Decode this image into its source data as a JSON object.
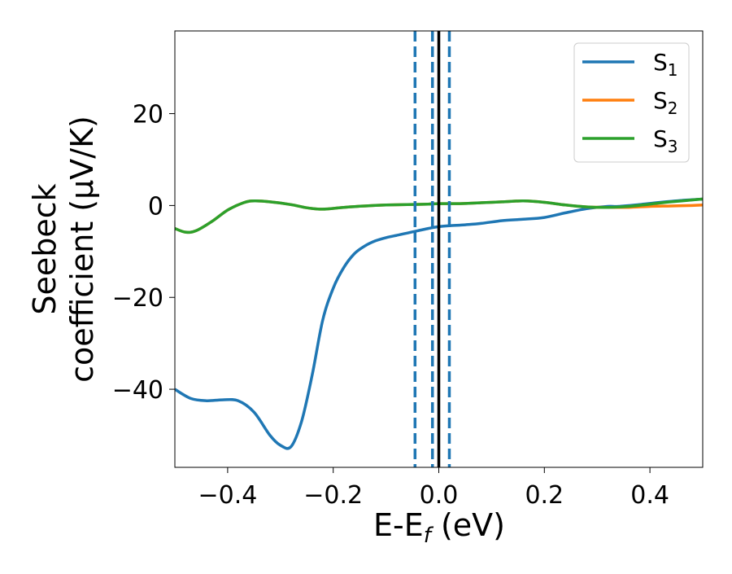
{
  "chart_data": {
    "type": "line",
    "xlabel": "E-E",
    "xlabel_sub": "f",
    "xlabel_unit": " (eV)",
    "ylabel_line1": "Seebeck",
    "ylabel_line2": "coefficient  (μV/K)",
    "xlim": [
      -0.5,
      0.5
    ],
    "ylim": [
      -57,
      38
    ],
    "x_ticks": [
      -0.4,
      -0.2,
      0.0,
      0.2,
      0.4
    ],
    "x_tick_labels": [
      "−0.4",
      "−0.2",
      "0.0",
      "0.2",
      "0.4"
    ],
    "y_ticks": [
      -40,
      -20,
      0,
      20
    ],
    "y_tick_labels": [
      "−40",
      "−20",
      "0",
      "20"
    ],
    "grid": false,
    "legend_position": "top-right",
    "series": [
      {
        "name": "S",
        "subscript": "1",
        "color": "#1f77b4",
        "points": [
          [
            -0.5,
            -40
          ],
          [
            -0.47,
            -42
          ],
          [
            -0.44,
            -42.5
          ],
          [
            -0.41,
            -42.3
          ],
          [
            -0.38,
            -42.5
          ],
          [
            -0.35,
            -45
          ],
          [
            -0.32,
            -50
          ],
          [
            -0.3,
            -52.2
          ],
          [
            -0.28,
            -52.5
          ],
          [
            -0.26,
            -47
          ],
          [
            -0.24,
            -37
          ],
          [
            -0.22,
            -25
          ],
          [
            -0.2,
            -18
          ],
          [
            -0.18,
            -13.5
          ],
          [
            -0.16,
            -10.5
          ],
          [
            -0.14,
            -8.8
          ],
          [
            -0.12,
            -7.7
          ],
          [
            -0.1,
            -7
          ],
          [
            -0.08,
            -6.5
          ],
          [
            -0.06,
            -6
          ],
          [
            -0.04,
            -5.5
          ],
          [
            -0.02,
            -5
          ],
          [
            0.0,
            -4.6
          ],
          [
            0.02,
            -4.4
          ],
          [
            0.05,
            -4.2
          ],
          [
            0.08,
            -3.9
          ],
          [
            0.12,
            -3.3
          ],
          [
            0.16,
            -3
          ],
          [
            0.2,
            -2.6
          ],
          [
            0.24,
            -1.6
          ],
          [
            0.28,
            -0.7
          ],
          [
            0.32,
            -0.2
          ],
          [
            0.34,
            -0.2
          ],
          [
            0.38,
            0.2
          ],
          [
            0.42,
            0.7
          ],
          [
            0.46,
            1.1
          ],
          [
            0.5,
            1.4
          ]
        ]
      },
      {
        "name": "S",
        "subscript": "2",
        "color": "#ff7f0e",
        "points": [
          [
            -0.5,
            -5
          ],
          [
            -0.48,
            -5.8
          ],
          [
            -0.46,
            -5.5
          ],
          [
            -0.43,
            -3.5
          ],
          [
            -0.4,
            -1
          ],
          [
            -0.37,
            0.6
          ],
          [
            -0.35,
            1
          ],
          [
            -0.32,
            0.8
          ],
          [
            -0.28,
            0.2
          ],
          [
            -0.25,
            -0.5
          ],
          [
            -0.22,
            -0.8
          ],
          [
            -0.18,
            -0.4
          ],
          [
            -0.14,
            -0.1
          ],
          [
            -0.1,
            0.1
          ],
          [
            -0.06,
            0.2
          ],
          [
            -0.02,
            0.3
          ],
          [
            0.0,
            0.4
          ],
          [
            0.04,
            0.4
          ],
          [
            0.08,
            0.6
          ],
          [
            0.12,
            0.8
          ],
          [
            0.16,
            1
          ],
          [
            0.2,
            0.7
          ],
          [
            0.24,
            0.1
          ],
          [
            0.28,
            -0.3
          ],
          [
            0.32,
            -0.4
          ],
          [
            0.36,
            -0.4
          ],
          [
            0.4,
            -0.2
          ],
          [
            0.44,
            -0.1
          ],
          [
            0.48,
            0
          ],
          [
            0.5,
            0.1
          ]
        ]
      },
      {
        "name": "S",
        "subscript": "3",
        "color": "#2ca02c",
        "points": [
          [
            -0.5,
            -5
          ],
          [
            -0.48,
            -5.8
          ],
          [
            -0.46,
            -5.5
          ],
          [
            -0.43,
            -3.5
          ],
          [
            -0.4,
            -1
          ],
          [
            -0.37,
            0.6
          ],
          [
            -0.35,
            1
          ],
          [
            -0.32,
            0.8
          ],
          [
            -0.28,
            0.2
          ],
          [
            -0.25,
            -0.5
          ],
          [
            -0.22,
            -0.8
          ],
          [
            -0.18,
            -0.4
          ],
          [
            -0.14,
            -0.1
          ],
          [
            -0.1,
            0.1
          ],
          [
            -0.06,
            0.2
          ],
          [
            -0.02,
            0.3
          ],
          [
            0.0,
            0.4
          ],
          [
            0.04,
            0.4
          ],
          [
            0.08,
            0.6
          ],
          [
            0.12,
            0.8
          ],
          [
            0.16,
            1
          ],
          [
            0.2,
            0.7
          ],
          [
            0.24,
            0.1
          ],
          [
            0.28,
            -0.3
          ],
          [
            0.32,
            -0.4
          ],
          [
            0.36,
            -0.2
          ],
          [
            0.4,
            0.3
          ],
          [
            0.44,
            0.8
          ],
          [
            0.48,
            1.2
          ],
          [
            0.5,
            1.4
          ]
        ]
      }
    ],
    "vlines": [
      {
        "x": -0.045,
        "style": "dashed",
        "color": "#1f77b4"
      },
      {
        "x": -0.012,
        "style": "dashed",
        "color": "#1f77b4"
      },
      {
        "x": 0.02,
        "style": "dashed",
        "color": "#1f77b4"
      },
      {
        "x": 0.0,
        "style": "solid",
        "color": "#000000"
      }
    ]
  }
}
